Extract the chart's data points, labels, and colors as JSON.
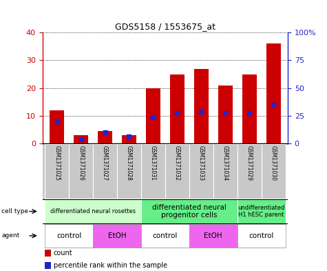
{
  "title": "GDS5158 / 1553675_at",
  "samples": [
    "GSM1371025",
    "GSM1371026",
    "GSM1371027",
    "GSM1371028",
    "GSM1371031",
    "GSM1371032",
    "GSM1371033",
    "GSM1371034",
    "GSM1371029",
    "GSM1371030"
  ],
  "counts": [
    12,
    3,
    4.5,
    3,
    20,
    25,
    27,
    21,
    25,
    36
  ],
  "percentile_ranks_pct": [
    20,
    3.75,
    10,
    6.25,
    23.75,
    27.5,
    28.75,
    27.5,
    27.5,
    35
  ],
  "ylim_left": [
    0,
    40
  ],
  "ylim_right": [
    0,
    100
  ],
  "yticks_left": [
    0,
    10,
    20,
    30,
    40
  ],
  "yticks_right": [
    0,
    25,
    50,
    75,
    100
  ],
  "ytick_labels_right": [
    "0",
    "25",
    "50",
    "75",
    "100%"
  ],
  "bar_color": "#cc0000",
  "dot_color": "#2222cc",
  "tick_color_left": "#cc0000",
  "tick_color_right": "#2222cc",
  "sample_row_color": "#c8c8c8",
  "cell_type_groups": [
    {
      "label": "differentiated neural rosettes",
      "start": 0,
      "end": 4,
      "color": "#ccffcc",
      "fontsize": 6
    },
    {
      "label": "differentiated neural\nprogenitor cells",
      "start": 4,
      "end": 8,
      "color": "#66ee88",
      "fontsize": 7.5
    },
    {
      "label": "undifferentiated\nH1 hESC parent",
      "start": 8,
      "end": 10,
      "color": "#66ee88",
      "fontsize": 6
    }
  ],
  "agent_groups": [
    {
      "label": "control",
      "start": 0,
      "end": 2,
      "color": "#ffffff"
    },
    {
      "label": "EtOH",
      "start": 2,
      "end": 4,
      "color": "#ee66ee"
    },
    {
      "label": "control",
      "start": 4,
      "end": 6,
      "color": "#ffffff"
    },
    {
      "label": "EtOH",
      "start": 6,
      "end": 8,
      "color": "#ee66ee"
    },
    {
      "label": "control",
      "start": 8,
      "end": 10,
      "color": "#ffffff"
    }
  ],
  "legend_count_color": "#cc0000",
  "legend_dot_color": "#2222cc"
}
